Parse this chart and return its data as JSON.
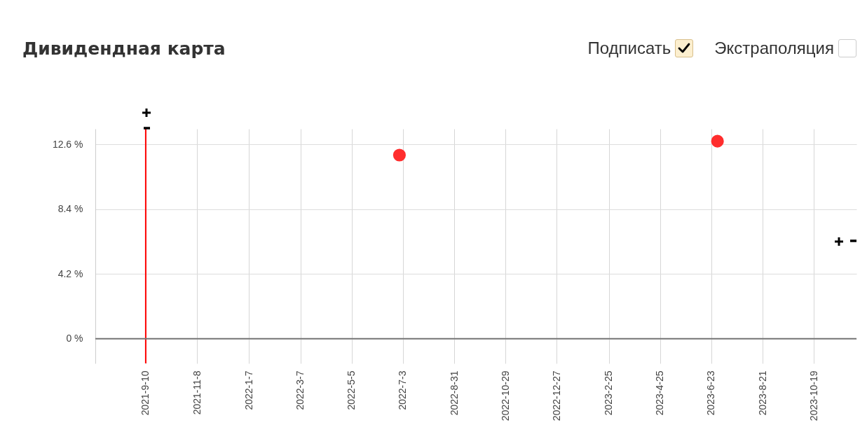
{
  "chart_data": {
    "type": "scatter",
    "title": "Дивидендная карта",
    "annotations": [
      "Подписать",
      "Экстраполяция"
    ],
    "x": [
      "2022-06-29",
      "2023-06-30"
    ],
    "series": [
      {
        "color": "#ff2d2d",
        "values": [
          11.9,
          12.8
        ]
      }
    ],
    "marker": "circle",
    "xlim": [
      "2021-07-14",
      "2023-12-07"
    ],
    "xticks": [
      {
        "value": "2021-09-10",
        "label": "2021-9-10"
      },
      {
        "value": "2021-11-08",
        "label": "2021-11-8"
      },
      {
        "value": "2022-01-07",
        "label": "2022-1-7"
      },
      {
        "value": "2022-03-07",
        "label": "2022-3-7"
      },
      {
        "value": "2022-05-05",
        "label": "2022-5-5"
      },
      {
        "value": "2022-07-03",
        "label": "2022-7-3"
      },
      {
        "value": "2022-08-31",
        "label": "2022-8-31"
      },
      {
        "value": "2022-10-29",
        "label": "2022-10-29"
      },
      {
        "value": "2022-12-27",
        "label": "2022-12-27"
      },
      {
        "value": "2023-02-25",
        "label": "2023-2-25"
      },
      {
        "value": "2023-04-25",
        "label": "2023-4-25"
      },
      {
        "value": "2023-06-23",
        "label": "2023-6-23"
      },
      {
        "value": "2023-08-21",
        "label": "2023-8-21"
      },
      {
        "value": "2023-10-19",
        "label": "2023-10-19"
      }
    ],
    "ylim": [
      -1.6,
      13.6
    ],
    "yticks": [
      {
        "value": 0,
        "label": "0 %"
      },
      {
        "value": 4.2,
        "label": "4.2 %"
      },
      {
        "value": 8.4,
        "label": "8.4 %"
      },
      {
        "value": 12.6,
        "label": "12.6 %"
      }
    ],
    "grid": true,
    "ref_lines": [
      {
        "axis": "x",
        "value": "2021-09-10",
        "color": "#ff0000"
      },
      {
        "axis": "y",
        "value": 0,
        "color": "#777777"
      }
    ]
  }
}
